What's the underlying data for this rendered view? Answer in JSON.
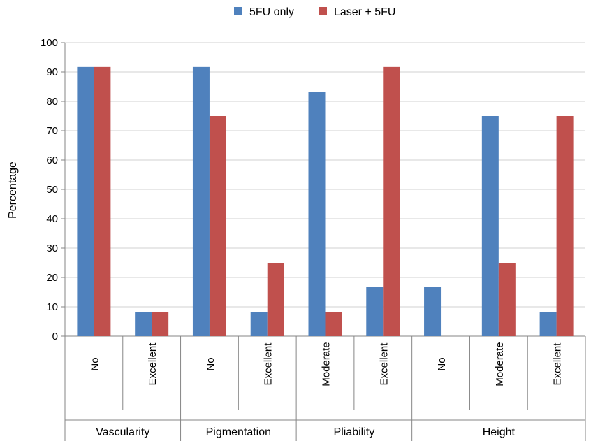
{
  "chart_data": {
    "type": "bar",
    "title": "",
    "ylabel": "Percentage",
    "xlabel": "",
    "ylim": [
      0,
      100
    ],
    "yticks": [
      0,
      10,
      20,
      30,
      40,
      50,
      60,
      70,
      80,
      90,
      100
    ],
    "grid": true,
    "legend_position": "top",
    "groups": [
      {
        "label": "Vascularity",
        "categories": [
          "No",
          "Excellent"
        ]
      },
      {
        "label": "Pigmentation",
        "categories": [
          "No",
          "Excellent"
        ]
      },
      {
        "label": "Pliability",
        "categories": [
          "Moderate",
          "Excellent"
        ]
      },
      {
        "label": "Height",
        "categories": [
          "No",
          "Moderate",
          "Excellent"
        ]
      }
    ],
    "categories": [
      "No",
      "Excellent",
      "No",
      "Excellent",
      "Moderate",
      "Excellent",
      "No",
      "Moderate",
      "Excellent"
    ],
    "series": [
      {
        "name": "5FU only",
        "color": "#4F81BD",
        "values": [
          91.7,
          8.3,
          91.7,
          8.3,
          83.3,
          16.7,
          16.7,
          75,
          8.3
        ]
      },
      {
        "name": "Laser + 5FU",
        "color": "#C0504D",
        "values": [
          91.7,
          8.3,
          75,
          25,
          8.3,
          91.7,
          0,
          25,
          75
        ]
      }
    ]
  }
}
